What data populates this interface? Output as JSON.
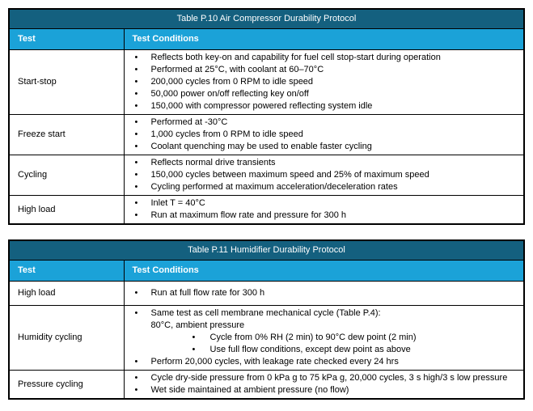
{
  "colors": {
    "title_bar_bg": "#14607F",
    "header_row_bg": "#1BA2D8",
    "header_text": "#ffffff",
    "body_text": "#000000",
    "border": "#000000",
    "page_bg": "#ffffff"
  },
  "icons": {
    "bullet": "•"
  },
  "tables": [
    {
      "title": "Table P.10 Air Compressor Durability Protocol",
      "columns": {
        "test": "Test",
        "conditions": "Test Conditions"
      },
      "rows": [
        {
          "test": "Start-stop",
          "conditions": [
            {
              "level": 1,
              "text": "Reflects both key-on and capability for fuel cell stop-start during operation"
            },
            {
              "level": 1,
              "text": "Performed at 25°C, with coolant at 60–70°C"
            },
            {
              "level": 1,
              "text": "200,000 cycles from 0 RPM to idle speed"
            },
            {
              "level": 1,
              "text": "50,000 power on/off reflecting key on/off"
            },
            {
              "level": 1,
              "text": "150,000 with compressor powered reflecting system idle"
            }
          ]
        },
        {
          "test": "Freeze start",
          "conditions": [
            {
              "level": 1,
              "text": "Performed at -30°C"
            },
            {
              "level": 1,
              "text": "1,000 cycles from 0 RPM to idle speed"
            },
            {
              "level": 1,
              "text": "Coolant quenching may be used to enable faster cycling"
            }
          ]
        },
        {
          "test": "Cycling",
          "conditions": [
            {
              "level": 1,
              "text": "Reflects normal drive transients"
            },
            {
              "level": 1,
              "text": "150,000 cycles between maximum speed and 25% of maximum speed"
            },
            {
              "level": 1,
              "text": "Cycling performed at maximum acceleration/deceleration rates"
            }
          ]
        },
        {
          "test": "High load",
          "conditions": [
            {
              "level": 1,
              "text": "Inlet T = 40°C"
            },
            {
              "level": 1,
              "text": "Run at maximum flow rate and pressure for 300 h"
            }
          ]
        }
      ]
    },
    {
      "title": "Table P.11 Humidifier Durability Protocol",
      "columns": {
        "test": "Test",
        "conditions": "Test Conditions"
      },
      "rows": [
        {
          "test": "High load",
          "conditions": [
            {
              "level": 1,
              "text": "Run at full flow rate for 300 h"
            }
          ]
        },
        {
          "test": "Humidity cycling",
          "conditions": [
            {
              "level": 1,
              "text": "Same test as cell membrane mechanical cycle (Table P.4):"
            },
            {
              "level": 0,
              "text": "80°C, ambient pressure"
            },
            {
              "level": 2,
              "text": "Cycle from 0% RH (2 min) to 90°C dew point (2 min)"
            },
            {
              "level": 2,
              "text": "Use full flow conditions, except dew point as above"
            },
            {
              "level": 1,
              "text": "Perform 20,000 cycles, with leakage rate checked every 24 hrs"
            }
          ]
        },
        {
          "test": "Pressure cycling",
          "conditions": [
            {
              "level": 1,
              "text": "Cycle dry-side pressure from 0 kPa g to 75 kPa g, 20,000 cycles, 3 s high/3 s low pressure"
            },
            {
              "level": 1,
              "text": "Wet side maintained at ambient pressure (no flow)"
            }
          ]
        }
      ]
    }
  ]
}
